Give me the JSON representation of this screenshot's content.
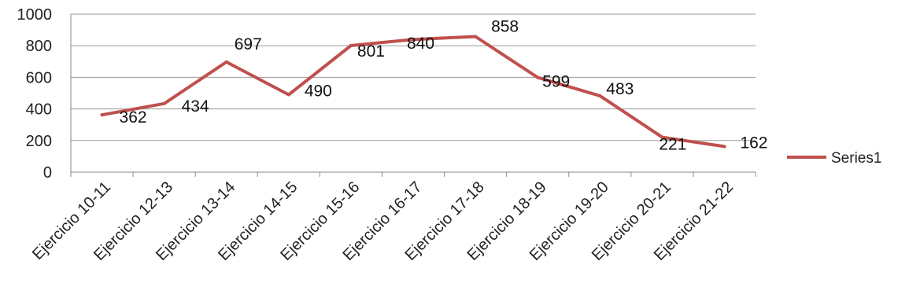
{
  "chart_data": {
    "type": "line",
    "categories": [
      "Ejercicio 10-11",
      "Ejercicio 12-13",
      "Ejercicio 13-14",
      "Ejercicio 14-15",
      "Ejercicio 15-16",
      "Ejercicio 16-17",
      "Ejercicio 17-18",
      "Ejercicio 18-19",
      "Ejercicio 19-20",
      "Ejercicio 20-21",
      "Ejercicio 21-22"
    ],
    "series": [
      {
        "name": "Series1",
        "values": [
          362,
          434,
          697,
          490,
          801,
          840,
          858,
          599,
          483,
          221,
          162
        ],
        "color": "#c0504d"
      }
    ],
    "ylim": [
      0,
      1000
    ],
    "yticks": [
      0,
      200,
      400,
      600,
      800,
      1000
    ],
    "grid": true,
    "legend": "right",
    "data_labels": true
  }
}
